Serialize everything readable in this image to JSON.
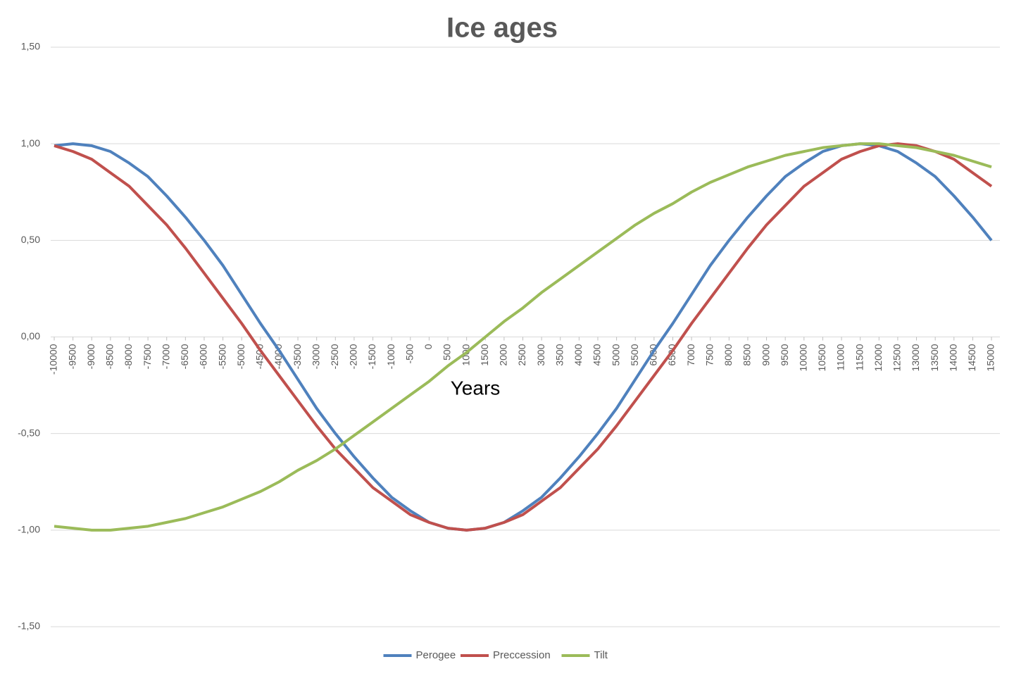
{
  "chart_data": {
    "type": "line",
    "title": "Ice ages",
    "x_label": "Years",
    "categories": [
      "-10000",
      "-9500",
      "-9000",
      "-8500",
      "-8000",
      "-7500",
      "-7000",
      "-6500",
      "-6000",
      "-5500",
      "-5000",
      "-4500",
      "-4000",
      "-3500",
      "-3000",
      "-2500",
      "-2000",
      "-1500",
      "-1000",
      "-500",
      "0",
      "500",
      "1000",
      "1500",
      "2000",
      "2500",
      "3000",
      "3500",
      "4000",
      "4500",
      "5000",
      "5500",
      "6000",
      "6500",
      "7000",
      "7500",
      "8000",
      "8500",
      "9000",
      "9500",
      "10000",
      "10500",
      "11000",
      "11500",
      "12000",
      "12500",
      "13000",
      "13500",
      "14000",
      "14500",
      "15000"
    ],
    "series": [
      {
        "name": "Perogee",
        "color": "#4f81bd",
        "values": [
          0.99,
          1.0,
          0.99,
          0.96,
          0.9,
          0.83,
          0.73,
          0.62,
          0.5,
          0.37,
          0.22,
          0.07,
          -0.07,
          -0.22,
          -0.37,
          -0.5,
          -0.62,
          -0.73,
          -0.83,
          -0.9,
          -0.96,
          -0.99,
          -1.0,
          -0.99,
          -0.96,
          -0.9,
          -0.83,
          -0.73,
          -0.62,
          -0.5,
          -0.37,
          -0.22,
          -0.07,
          0.07,
          0.22,
          0.37,
          0.5,
          0.62,
          0.73,
          0.83,
          0.9,
          0.96,
          0.99,
          1.0,
          0.99,
          0.96,
          0.9,
          0.83,
          0.73,
          0.62,
          0.5
        ]
      },
      {
        "name": "Preccession",
        "color": "#c0504d",
        "values": [
          0.99,
          0.96,
          0.92,
          0.85,
          0.78,
          0.68,
          0.58,
          0.46,
          0.33,
          0.2,
          0.07,
          -0.07,
          -0.2,
          -0.33,
          -0.46,
          -0.58,
          -0.68,
          -0.78,
          -0.85,
          -0.92,
          -0.96,
          -0.99,
          -1.0,
          -0.99,
          -0.96,
          -0.92,
          -0.85,
          -0.78,
          -0.68,
          -0.58,
          -0.46,
          -0.33,
          -0.2,
          -0.07,
          0.07,
          0.2,
          0.33,
          0.46,
          0.58,
          0.68,
          0.78,
          0.85,
          0.92,
          0.96,
          0.99,
          1.0,
          0.99,
          0.96,
          0.92,
          0.85,
          0.78
        ]
      },
      {
        "name": "Tilt",
        "color": "#9bbb59",
        "values": [
          -0.98,
          -0.99,
          -1.0,
          -1.0,
          -0.99,
          -0.98,
          -0.96,
          -0.94,
          -0.91,
          -0.88,
          -0.84,
          -0.8,
          -0.75,
          -0.69,
          -0.64,
          -0.58,
          -0.51,
          -0.44,
          -0.37,
          -0.3,
          -0.23,
          -0.15,
          -0.08,
          0.0,
          0.08,
          0.15,
          0.23,
          0.3,
          0.37,
          0.44,
          0.51,
          0.58,
          0.64,
          0.69,
          0.75,
          0.8,
          0.84,
          0.88,
          0.91,
          0.94,
          0.96,
          0.98,
          0.99,
          1.0,
          1.0,
          0.99,
          0.98,
          0.96,
          0.94,
          0.91,
          0.88
        ]
      }
    ],
    "ylim": [
      -1.5,
      1.5
    ],
    "yticks": [
      {
        "value": -1.5,
        "label": "-1,50"
      },
      {
        "value": -1,
        "label": "-1,00"
      },
      {
        "value": -0.5,
        "label": "-0,50"
      },
      {
        "value": 0,
        "label": "0,00"
      },
      {
        "value": 0.5,
        "label": "0,50"
      },
      {
        "value": 1,
        "label": "1,00"
      },
      {
        "value": 1.5,
        "label": "1,50"
      }
    ],
    "grid": true,
    "legend": "bottom"
  }
}
